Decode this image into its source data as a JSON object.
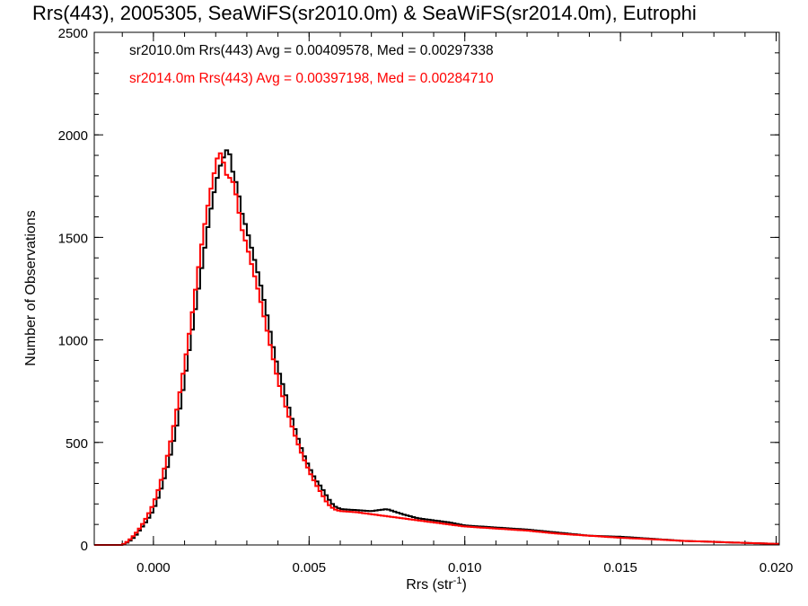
{
  "chart_data": {
    "type": "line",
    "subtype": "step-histogram",
    "title": "Rrs(443), 2005305, SeaWiFS(sr2010.0m) & SeaWiFS(sr2014.0m), Eutrophi",
    "xlabel": "Rrs (str",
    "xlabel_sup": "-1",
    "xlabel_close": ")",
    "ylabel": "Number of Observations",
    "xlim": [
      -0.0019,
      0.0201
    ],
    "ylim": [
      0,
      2500
    ],
    "x_ticks": [
      0.0,
      0.005,
      0.01,
      0.015,
      0.02
    ],
    "x_tick_labels": [
      "0.000",
      "0.005",
      "0.010",
      "0.015",
      "0.020"
    ],
    "y_ticks": [
      0,
      500,
      1000,
      1500,
      2000,
      2500
    ],
    "y_tick_labels": [
      "0",
      "500",
      "1000",
      "1500",
      "2000",
      "2500"
    ],
    "x_minor_step": 0.001,
    "y_minor_step": 100,
    "legend_position": "top-left",
    "legend": [
      "sr2010.0m Rrs(443) Avg = 0.00409578, Med = 0.00297338",
      "sr2014.0m Rrs(443) Avg = 0.00397198, Med = 0.00284710"
    ],
    "bin_width": 0.0001,
    "series": [
      {
        "color": "#000000",
        "points": [
          [
            -0.0019,
            0
          ],
          [
            -0.001,
            0
          ],
          [
            -0.0008,
            15
          ],
          [
            -0.0006,
            40
          ],
          [
            -0.0004,
            80
          ],
          [
            -0.0002,
            120
          ],
          [
            0.0,
            170
          ],
          [
            0.0002,
            250
          ],
          [
            0.0004,
            350
          ],
          [
            0.0006,
            470
          ],
          [
            0.0008,
            620
          ],
          [
            0.001,
            800
          ],
          [
            0.0012,
            1000
          ],
          [
            0.0014,
            1200
          ],
          [
            0.0016,
            1400
          ],
          [
            0.0018,
            1600
          ],
          [
            0.002,
            1760
          ],
          [
            0.0022,
            1880
          ],
          [
            0.0023,
            1900
          ],
          [
            0.0024,
            1950
          ],
          [
            0.0025,
            1860
          ],
          [
            0.0026,
            1780
          ],
          [
            0.0027,
            1760
          ],
          [
            0.0028,
            1640
          ],
          [
            0.003,
            1540
          ],
          [
            0.0032,
            1420
          ],
          [
            0.0034,
            1300
          ],
          [
            0.0036,
            1160
          ],
          [
            0.0038,
            1000
          ],
          [
            0.004,
            860
          ],
          [
            0.0042,
            760
          ],
          [
            0.0044,
            640
          ],
          [
            0.0046,
            540
          ],
          [
            0.0048,
            450
          ],
          [
            0.005,
            380
          ],
          [
            0.0052,
            320
          ],
          [
            0.0054,
            280
          ],
          [
            0.0056,
            230
          ],
          [
            0.0058,
            190
          ],
          [
            0.006,
            175
          ],
          [
            0.0065,
            170
          ],
          [
            0.007,
            165
          ],
          [
            0.0075,
            175
          ],
          [
            0.008,
            150
          ],
          [
            0.0085,
            130
          ],
          [
            0.009,
            120
          ],
          [
            0.0095,
            110
          ],
          [
            0.01,
            95
          ],
          [
            0.011,
            85
          ],
          [
            0.012,
            75
          ],
          [
            0.013,
            60
          ],
          [
            0.014,
            45
          ],
          [
            0.015,
            40
          ],
          [
            0.016,
            30
          ],
          [
            0.017,
            20
          ],
          [
            0.018,
            15
          ],
          [
            0.019,
            10
          ],
          [
            0.0201,
            5
          ]
        ]
      },
      {
        "color": "#ff0000",
        "points": [
          [
            -0.0019,
            0
          ],
          [
            -0.001,
            0
          ],
          [
            -0.0008,
            20
          ],
          [
            -0.0006,
            50
          ],
          [
            -0.0004,
            90
          ],
          [
            -0.0002,
            140
          ],
          [
            0.0,
            200
          ],
          [
            0.0002,
            290
          ],
          [
            0.0004,
            400
          ],
          [
            0.0006,
            540
          ],
          [
            0.0008,
            700
          ],
          [
            0.001,
            880
          ],
          [
            0.0012,
            1080
          ],
          [
            0.0014,
            1300
          ],
          [
            0.0016,
            1520
          ],
          [
            0.0018,
            1700
          ],
          [
            0.002,
            1850
          ],
          [
            0.0021,
            1920
          ],
          [
            0.0022,
            1900
          ],
          [
            0.0023,
            1830
          ],
          [
            0.0024,
            1780
          ],
          [
            0.0025,
            1800
          ],
          [
            0.0026,
            1740
          ],
          [
            0.0027,
            1680
          ],
          [
            0.0028,
            1560
          ],
          [
            0.003,
            1460
          ],
          [
            0.0032,
            1340
          ],
          [
            0.0034,
            1220
          ],
          [
            0.0036,
            1080
          ],
          [
            0.0038,
            940
          ],
          [
            0.004,
            800
          ],
          [
            0.0042,
            700
          ],
          [
            0.0044,
            600
          ],
          [
            0.0046,
            510
          ],
          [
            0.0048,
            430
          ],
          [
            0.005,
            360
          ],
          [
            0.0052,
            300
          ],
          [
            0.0054,
            250
          ],
          [
            0.0056,
            200
          ],
          [
            0.0058,
            175
          ],
          [
            0.006,
            165
          ],
          [
            0.0065,
            160
          ],
          [
            0.007,
            150
          ],
          [
            0.0075,
            140
          ],
          [
            0.008,
            130
          ],
          [
            0.0085,
            120
          ],
          [
            0.009,
            110
          ],
          [
            0.0095,
            100
          ],
          [
            0.01,
            90
          ],
          [
            0.011,
            80
          ],
          [
            0.012,
            70
          ],
          [
            0.013,
            55
          ],
          [
            0.014,
            45
          ],
          [
            0.015,
            35
          ],
          [
            0.016,
            28
          ],
          [
            0.017,
            20
          ],
          [
            0.018,
            15
          ],
          [
            0.019,
            10
          ],
          [
            0.0201,
            5
          ]
        ]
      }
    ]
  }
}
